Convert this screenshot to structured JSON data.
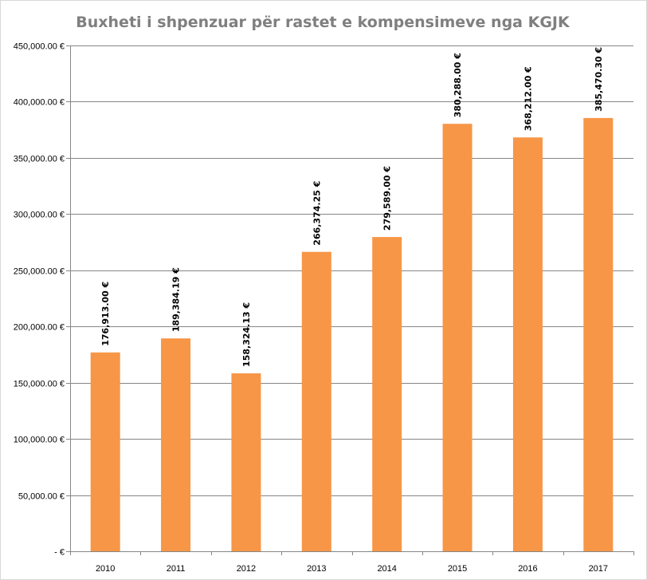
{
  "chart_data": {
    "type": "bar",
    "title": "Buxheti i shpenzuar për rastet e kompensimeve nga KGJK",
    "xlabel": "",
    "ylabel": "",
    "categories": [
      "2010",
      "2011",
      "2012",
      "2013",
      "2014",
      "2015",
      "2016",
      "2017"
    ],
    "values": [
      176913.0,
      189384.19,
      158324.13,
      266374.25,
      279589.0,
      380288.0,
      368212.0,
      385470.3
    ],
    "data_labels": [
      "176,913.00 €",
      "189,384.19 €",
      "158,324.13 €",
      "266,374.25 €",
      "279,589.00 €",
      "380,288.00 €",
      "368,212.00 €",
      "385,470.30 €"
    ],
    "ylim": [
      0,
      450000
    ],
    "yticks": [
      0,
      50000,
      100000,
      150000,
      200000,
      250000,
      300000,
      350000,
      400000,
      450000
    ],
    "ytick_labels": [
      "-  €",
      "50,000.00 €",
      "100,000.00 €",
      "150,000.00 €",
      "200,000.00 €",
      "250,000.00 €",
      "300,000.00 €",
      "350,000.00 €",
      "400,000.00 €",
      "450,000.00 €"
    ],
    "grid": true,
    "legend": "none",
    "colors": {
      "bar": "#f79646",
      "grid": "#868686",
      "title": "#7f7f7f"
    }
  }
}
